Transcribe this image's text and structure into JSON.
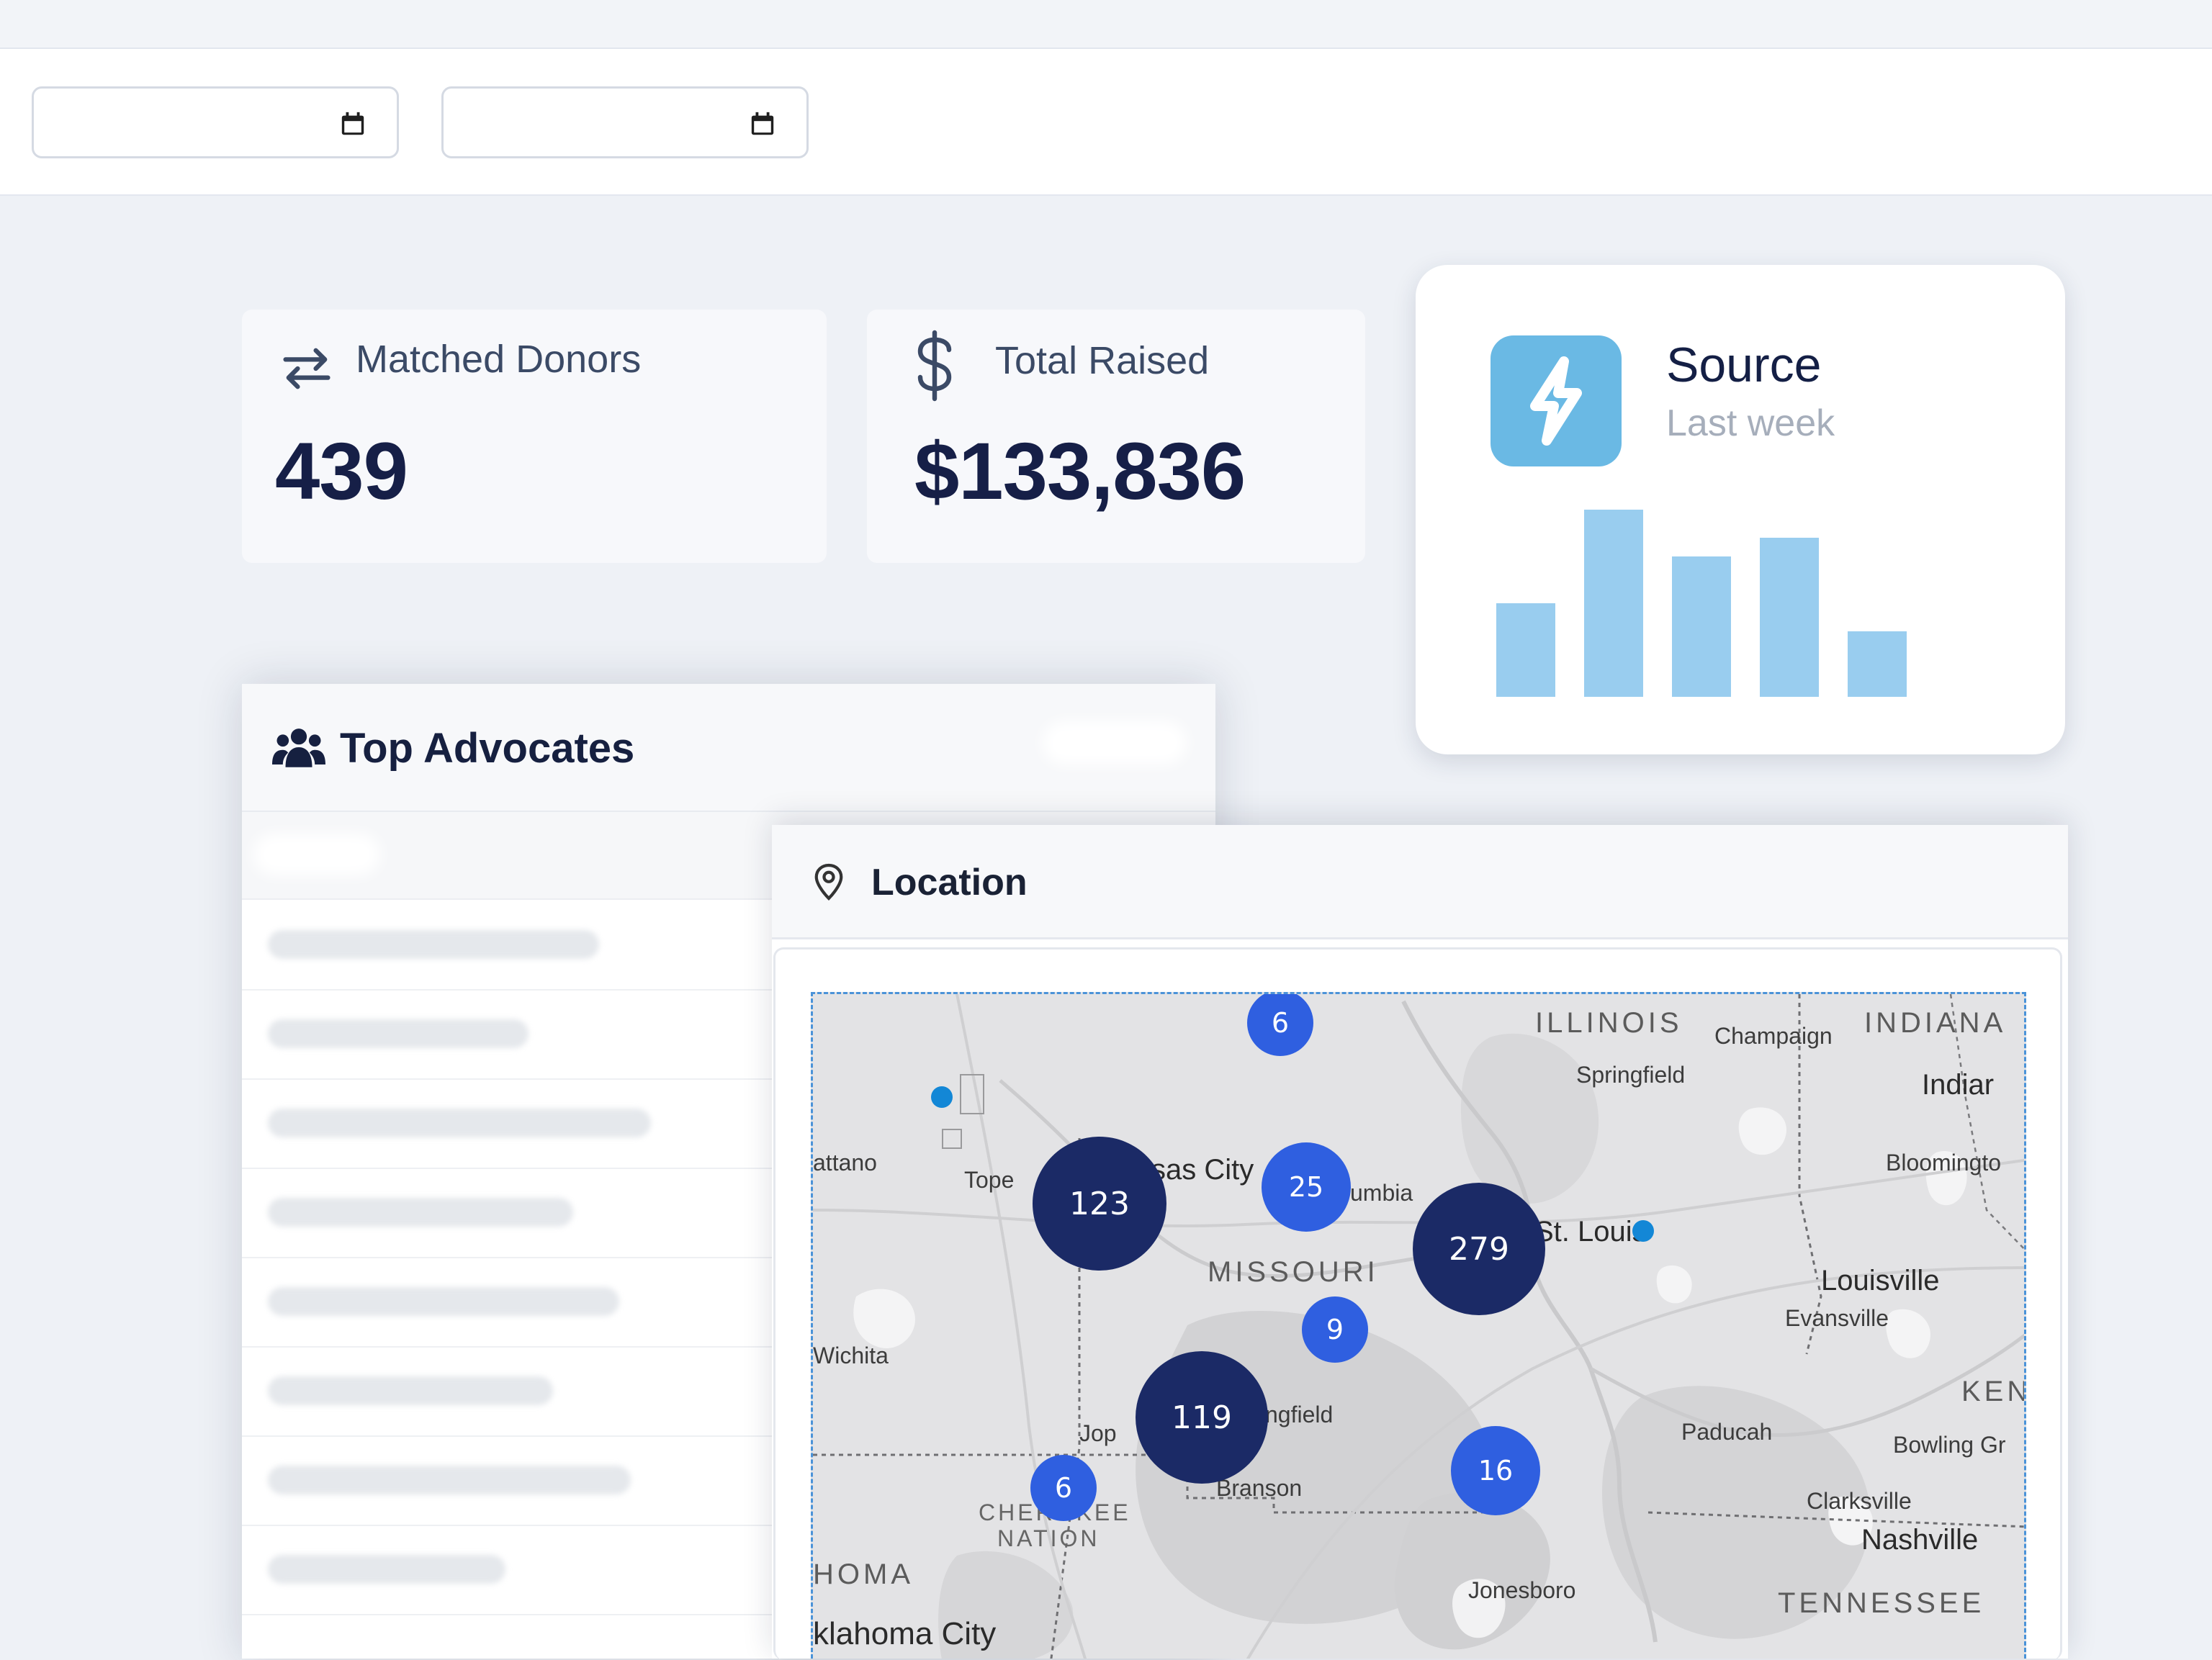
{
  "filters": {
    "start_date": {
      "value": "",
      "icon": "calendar-icon"
    },
    "end_date": {
      "value": "",
      "icon": "calendar-icon"
    }
  },
  "stats": {
    "matched_donors": {
      "label": "Matched Donors",
      "value": "439",
      "icon": "exchange-arrows-icon"
    },
    "total_raised": {
      "label": "Total Raised",
      "value": "$133,836",
      "icon": "dollar-icon"
    }
  },
  "source": {
    "title": "Source",
    "subtitle": "Last week",
    "icon": "lightning-icon",
    "color": "#6ab9e4",
    "bar_color": "#99cdef",
    "chart_data": {
      "type": "bar",
      "values": [
        0.5,
        1.0,
        0.75,
        0.85,
        0.35
      ]
    }
  },
  "advocates": {
    "title": "Top Advocates",
    "icon": "users-icon"
  },
  "location": {
    "title": "Location",
    "icon": "map-pin-icon",
    "map": {
      "state_labels": [
        "ILLINOIS",
        "INDIANA",
        "MISSOURI",
        "KEN",
        "TENNESSEE",
        "HOMA"
      ],
      "other_labels": [
        "CHEROKEE",
        "NATION"
      ],
      "cities": [
        "Champaign",
        "Springfield",
        "Indiar",
        "Bloomingto",
        "attano",
        "Tope",
        "sas City",
        "umbia",
        "St. Louis",
        "Louisville",
        "Evansville",
        "Wichita",
        "ngfield",
        "Jop",
        "Paducah",
        "Bowling Gr",
        "Branson",
        "Clarksville",
        "Nashville",
        "Jonesboro",
        "klahoma City"
      ],
      "clusters": [
        "6",
        "123",
        "25",
        "279",
        "9",
        "119",
        "6",
        "16"
      ]
    }
  }
}
